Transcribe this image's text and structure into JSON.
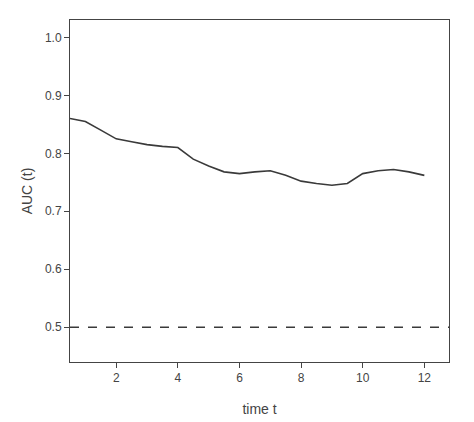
{
  "chart_data": {
    "type": "line",
    "x": [
      0.5,
      1.0,
      1.5,
      2.0,
      2.5,
      3.0,
      3.5,
      4.0,
      4.5,
      5.0,
      5.5,
      6.0,
      6.5,
      7.0,
      7.5,
      8.0,
      8.5,
      9.0,
      9.5,
      10.0,
      10.5,
      11.0,
      11.5,
      12.0
    ],
    "values": [
      0.86,
      0.855,
      0.84,
      0.825,
      0.82,
      0.815,
      0.812,
      0.81,
      0.79,
      0.778,
      0.768,
      0.765,
      0.768,
      0.77,
      0.762,
      0.752,
      0.748,
      0.745,
      0.748,
      0.765,
      0.77,
      0.772,
      0.768,
      0.762
    ],
    "color": "#3a3a3a",
    "reference_line": {
      "y": 0.5,
      "color": "#3a3a3a",
      "line_style": "dashed"
    },
    "xlabel": "time t",
    "ylabel": "AUC (t)",
    "xlim": [
      0.5,
      12.8
    ],
    "ylim": [
      0.44,
      1.03
    ],
    "xticks": [
      2,
      4,
      6,
      8,
      10,
      12
    ],
    "yticks": [
      0.5,
      0.6,
      0.7,
      0.8,
      0.9,
      {
        "value": 1,
        "label": "1.0"
      }
    ],
    "grid": false
  }
}
